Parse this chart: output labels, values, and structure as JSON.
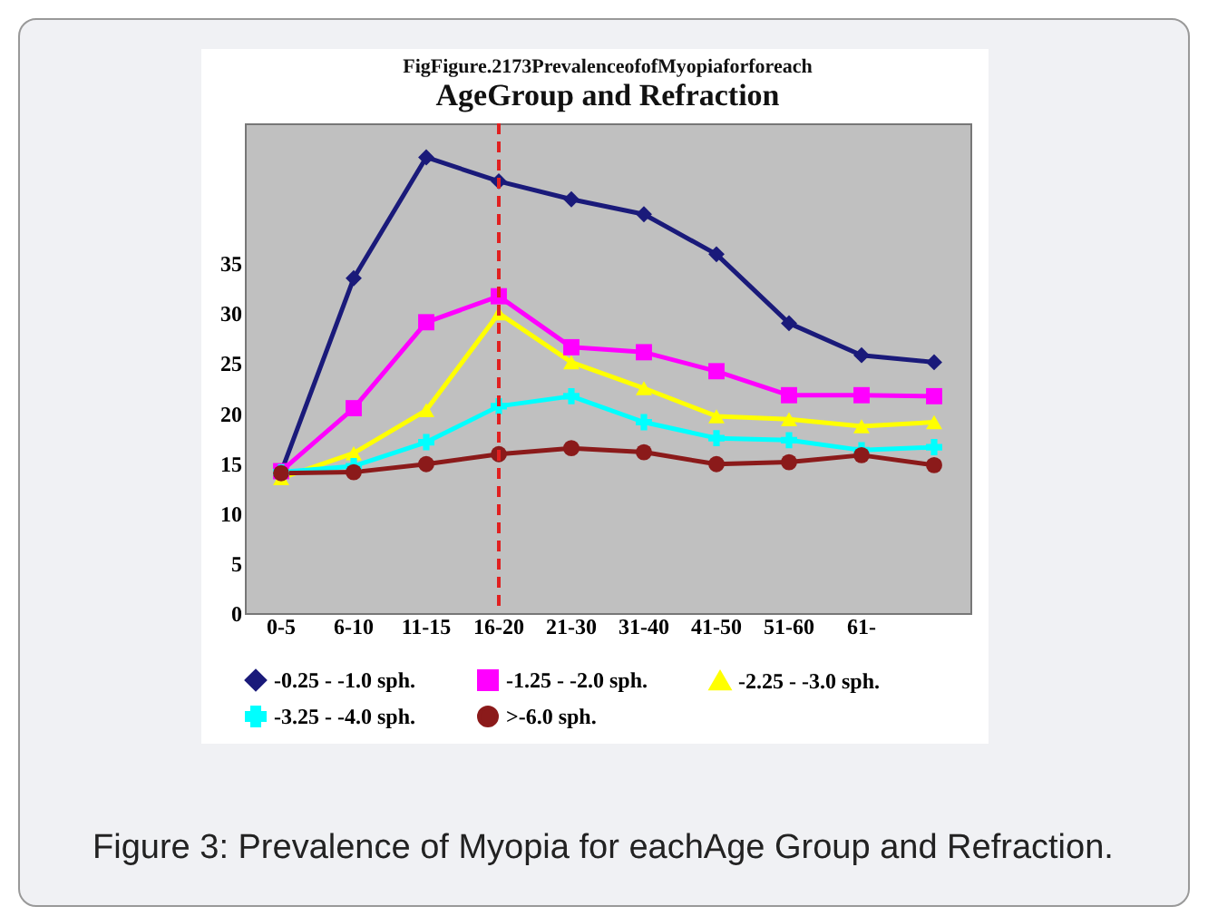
{
  "chart_data": {
    "type": "line",
    "title": "FigFigure.2173PrevalenceofofMyopiaforforeach",
    "subtitle": "AgeGroup and Refraction",
    "categories": [
      "0-5",
      "6-10",
      "11-15",
      "16-20",
      "21-30",
      "31-40",
      "41-50",
      "51-60",
      "61-",
      null
    ],
    "series": [
      {
        "name": "-0.25 - -1.0 sph.",
        "color": "#1a1a7a",
        "marker": "diamond",
        "values": [
          14.1,
          33.5,
          45.6,
          43.2,
          41.4,
          39.9,
          35.9,
          29.0,
          25.8,
          25.1
        ]
      },
      {
        "name": "-1.25 - -2.0 sph.",
        "color": "#ff00ff",
        "marker": "square",
        "values": [
          14.2,
          20.5,
          29.1,
          31.7,
          26.6,
          26.1,
          24.2,
          21.8,
          21.8,
          21.7
        ]
      },
      {
        "name": "-2.25 - -3.0 sph.",
        "color": "#ffff00",
        "marker": "triangle",
        "values": [
          13.5,
          16.0,
          20.3,
          30.0,
          25.1,
          22.5,
          19.7,
          19.4,
          18.7,
          19.1
        ]
      },
      {
        "name": "-3.25 - -4.0 sph.",
        "color": "#00ffff",
        "marker": "cross",
        "values": [
          14.1,
          14.7,
          17.1,
          20.7,
          21.7,
          19.1,
          17.5,
          17.3,
          16.3,
          16.6
        ]
      },
      {
        "name": ">-6.0 sph.",
        "color": "#8b1a1a",
        "marker": "circle",
        "values": [
          14.0,
          14.1,
          14.9,
          15.9,
          16.5,
          16.1,
          14.9,
          15.1,
          15.8,
          14.8
        ]
      }
    ],
    "ylim": [
      0,
      49
    ],
    "yticks": [
      0,
      5,
      10,
      15,
      20,
      25,
      30,
      35
    ],
    "grid": false,
    "legend": "bottom",
    "ref_lines": [
      {
        "axis": "x",
        "value": "16-20",
        "color": "#e02020",
        "line_style": "dashed"
      }
    ],
    "annotations": [
      "Figure 3: Prevalence of Myopia for eachAge Group and Refraction."
    ]
  }
}
